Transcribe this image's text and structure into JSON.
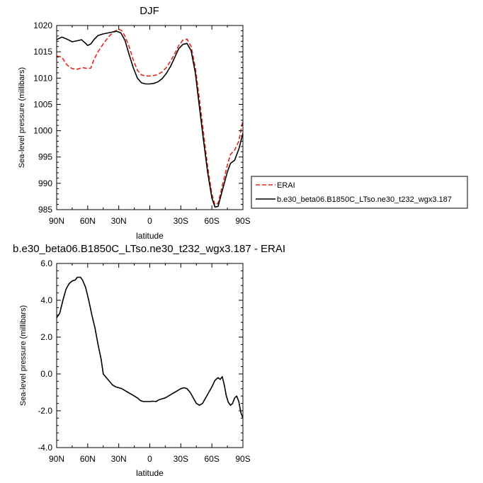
{
  "chart_data": [
    {
      "type": "line",
      "title": "DJF",
      "xlabel": "latitude",
      "ylabel": "Sea-level pressure (millibars)",
      "xlim": [
        90,
        -90
      ],
      "ylim": [
        985,
        1020
      ],
      "x_tick_values": [
        90,
        60,
        30,
        0,
        -30,
        -60,
        -90
      ],
      "x_tick_labels": [
        "90N",
        "60N",
        "30N",
        "0",
        "30S",
        "60S",
        "90S"
      ],
      "y_tick_values": [
        985,
        990,
        995,
        1000,
        1005,
        1010,
        1015,
        1020
      ],
      "y_tick_labels": [
        "985",
        "990",
        "995",
        "1000",
        "1005",
        "1010",
        "1015",
        "1020"
      ],
      "grid": false,
      "legend_position": "right",
      "series": [
        {
          "name": "ERAI",
          "color": "#e8231c",
          "dash": "dashed",
          "points": [
            [
              90,
              1014.2
            ],
            [
              85,
              1014.0
            ],
            [
              80,
              1012.5
            ],
            [
              75,
              1011.8
            ],
            [
              70,
              1011.7
            ],
            [
              65,
              1012.0
            ],
            [
              60,
              1011.8
            ],
            [
              57,
              1011.9
            ],
            [
              54,
              1013.5
            ],
            [
              50,
              1015.0
            ],
            [
              45,
              1016.5
            ],
            [
              40,
              1017.8
            ],
            [
              35,
              1018.8
            ],
            [
              30,
              1019.3
            ],
            [
              27,
              1019.0
            ],
            [
              24,
              1018.0
            ],
            [
              20,
              1016.0
            ],
            [
              16,
              1013.5
            ],
            [
              12,
              1011.5
            ],
            [
              8,
              1010.6
            ],
            [
              4,
              1010.4
            ],
            [
              0,
              1010.4
            ],
            [
              -4,
              1010.5
            ],
            [
              -8,
              1010.7
            ],
            [
              -12,
              1011.2
            ],
            [
              -16,
              1012.0
            ],
            [
              -20,
              1013.2
            ],
            [
              -24,
              1014.6
            ],
            [
              -28,
              1016.2
            ],
            [
              -32,
              1017.2
            ],
            [
              -36,
              1017.4
            ],
            [
              -40,
              1016.0
            ],
            [
              -44,
              1012.0
            ],
            [
              -48,
              1006.0
            ],
            [
              -52,
              999.5
            ],
            [
              -56,
              993.0
            ],
            [
              -60,
              988.0
            ],
            [
              -63,
              985.9
            ],
            [
              -66,
              986.2
            ],
            [
              -70,
              989.5
            ],
            [
              -75,
              993.5
            ],
            [
              -78,
              995.5
            ],
            [
              -82,
              996.3
            ],
            [
              -86,
              998.0
            ],
            [
              -90,
              1002.0
            ]
          ]
        },
        {
          "name": "b.e30_beta06.B1850C_LTso.ne30_t232_wgx3.187",
          "color": "#000000",
          "dash": "solid",
          "points": [
            [
              90,
              1017.3
            ],
            [
              85,
              1017.8
            ],
            [
              80,
              1017.4
            ],
            [
              75,
              1016.9
            ],
            [
              70,
              1017.1
            ],
            [
              66,
              1017.3
            ],
            [
              63,
              1016.8
            ],
            [
              60,
              1016.2
            ],
            [
              57,
              1016.5
            ],
            [
              54,
              1017.3
            ],
            [
              50,
              1018.1
            ],
            [
              45,
              1018.4
            ],
            [
              40,
              1018.6
            ],
            [
              35,
              1018.8
            ],
            [
              32,
              1018.9
            ],
            [
              28,
              1018.6
            ],
            [
              24,
              1017.2
            ],
            [
              20,
              1014.5
            ],
            [
              16,
              1012.0
            ],
            [
              12,
              1010.0
            ],
            [
              8,
              1009.1
            ],
            [
              4,
              1008.9
            ],
            [
              0,
              1008.9
            ],
            [
              -4,
              1009.0
            ],
            [
              -8,
              1009.3
            ],
            [
              -12,
              1009.9
            ],
            [
              -16,
              1010.9
            ],
            [
              -20,
              1012.2
            ],
            [
              -24,
              1013.9
            ],
            [
              -28,
              1015.6
            ],
            [
              -32,
              1016.4
            ],
            [
              -36,
              1016.6
            ],
            [
              -40,
              1015.2
            ],
            [
              -44,
              1011.0
            ],
            [
              -48,
              1004.5
            ],
            [
              -52,
              998.0
            ],
            [
              -56,
              992.0
            ],
            [
              -60,
              987.2
            ],
            [
              -63,
              985.5
            ],
            [
              -66,
              985.6
            ],
            [
              -70,
              988.6
            ],
            [
              -75,
              992.2
            ],
            [
              -78,
              993.8
            ],
            [
              -82,
              994.4
            ],
            [
              -86,
              996.5
            ],
            [
              -90,
              999.5
            ]
          ]
        }
      ]
    },
    {
      "type": "line",
      "title": "b.e30_beta06.B1850C_LTso.ne30_t232_wgx3.187 - ERAI",
      "xlabel": "latitude",
      "ylabel": "Sea-level pressure (millibars)",
      "xlim": [
        90,
        -90
      ],
      "ylim": [
        -4,
        6
      ],
      "x_tick_values": [
        90,
        60,
        30,
        0,
        -30,
        -60,
        -90
      ],
      "x_tick_labels": [
        "90N",
        "60N",
        "30N",
        "0",
        "30S",
        "60S",
        "90S"
      ],
      "y_tick_values": [
        -4,
        -2,
        0,
        2,
        4,
        6
      ],
      "y_tick_labels": [
        "-4.0",
        "-2.0",
        "0.0",
        "2.0",
        "4.0",
        "6.0"
      ],
      "grid": false,
      "series": [
        {
          "color": "#000000",
          "dash": "solid",
          "points": [
            [
              90,
              3.05
            ],
            [
              87,
              3.3
            ],
            [
              84,
              4.0
            ],
            [
              81,
              4.6
            ],
            [
              78,
              4.9
            ],
            [
              75,
              5.05
            ],
            [
              72,
              5.1
            ],
            [
              70,
              5.25
            ],
            [
              67,
              5.25
            ],
            [
              65,
              5.1
            ],
            [
              62,
              4.7
            ],
            [
              59,
              4.0
            ],
            [
              56,
              3.2
            ],
            [
              53,
              2.5
            ],
            [
              50,
              1.6
            ],
            [
              47,
              0.8
            ],
            [
              45,
              0.0
            ],
            [
              42,
              -0.2
            ],
            [
              39,
              -0.4
            ],
            [
              36,
              -0.6
            ],
            [
              33,
              -0.7
            ],
            [
              30,
              -0.75
            ],
            [
              27,
              -0.8
            ],
            [
              24,
              -0.9
            ],
            [
              21,
              -1.0
            ],
            [
              18,
              -1.1
            ],
            [
              15,
              -1.2
            ],
            [
              12,
              -1.3
            ],
            [
              9,
              -1.45
            ],
            [
              6,
              -1.5
            ],
            [
              3,
              -1.5
            ],
            [
              0,
              -1.5
            ],
            [
              -3,
              -1.48
            ],
            [
              -6,
              -1.5
            ],
            [
              -9,
              -1.4
            ],
            [
              -12,
              -1.35
            ],
            [
              -15,
              -1.3
            ],
            [
              -18,
              -1.2
            ],
            [
              -21,
              -1.1
            ],
            [
              -24,
              -1.0
            ],
            [
              -27,
              -0.9
            ],
            [
              -30,
              -0.8
            ],
            [
              -33,
              -0.75
            ],
            [
              -36,
              -0.8
            ],
            [
              -39,
              -1.0
            ],
            [
              -42,
              -1.3
            ],
            [
              -45,
              -1.6
            ],
            [
              -48,
              -1.7
            ],
            [
              -51,
              -1.6
            ],
            [
              -54,
              -1.3
            ],
            [
              -57,
              -1.0
            ],
            [
              -60,
              -0.7
            ],
            [
              -63,
              -0.35
            ],
            [
              -66,
              -0.2
            ],
            [
              -68,
              -0.3
            ],
            [
              -70,
              -0.15
            ],
            [
              -72,
              -0.6
            ],
            [
              -74,
              -1.2
            ],
            [
              -76,
              -1.55
            ],
            [
              -78,
              -1.7
            ],
            [
              -80,
              -1.6
            ],
            [
              -82,
              -1.3
            ],
            [
              -84,
              -1.2
            ],
            [
              -86,
              -1.5
            ],
            [
              -88,
              -2.1
            ],
            [
              -90,
              -2.4
            ]
          ]
        }
      ]
    }
  ]
}
